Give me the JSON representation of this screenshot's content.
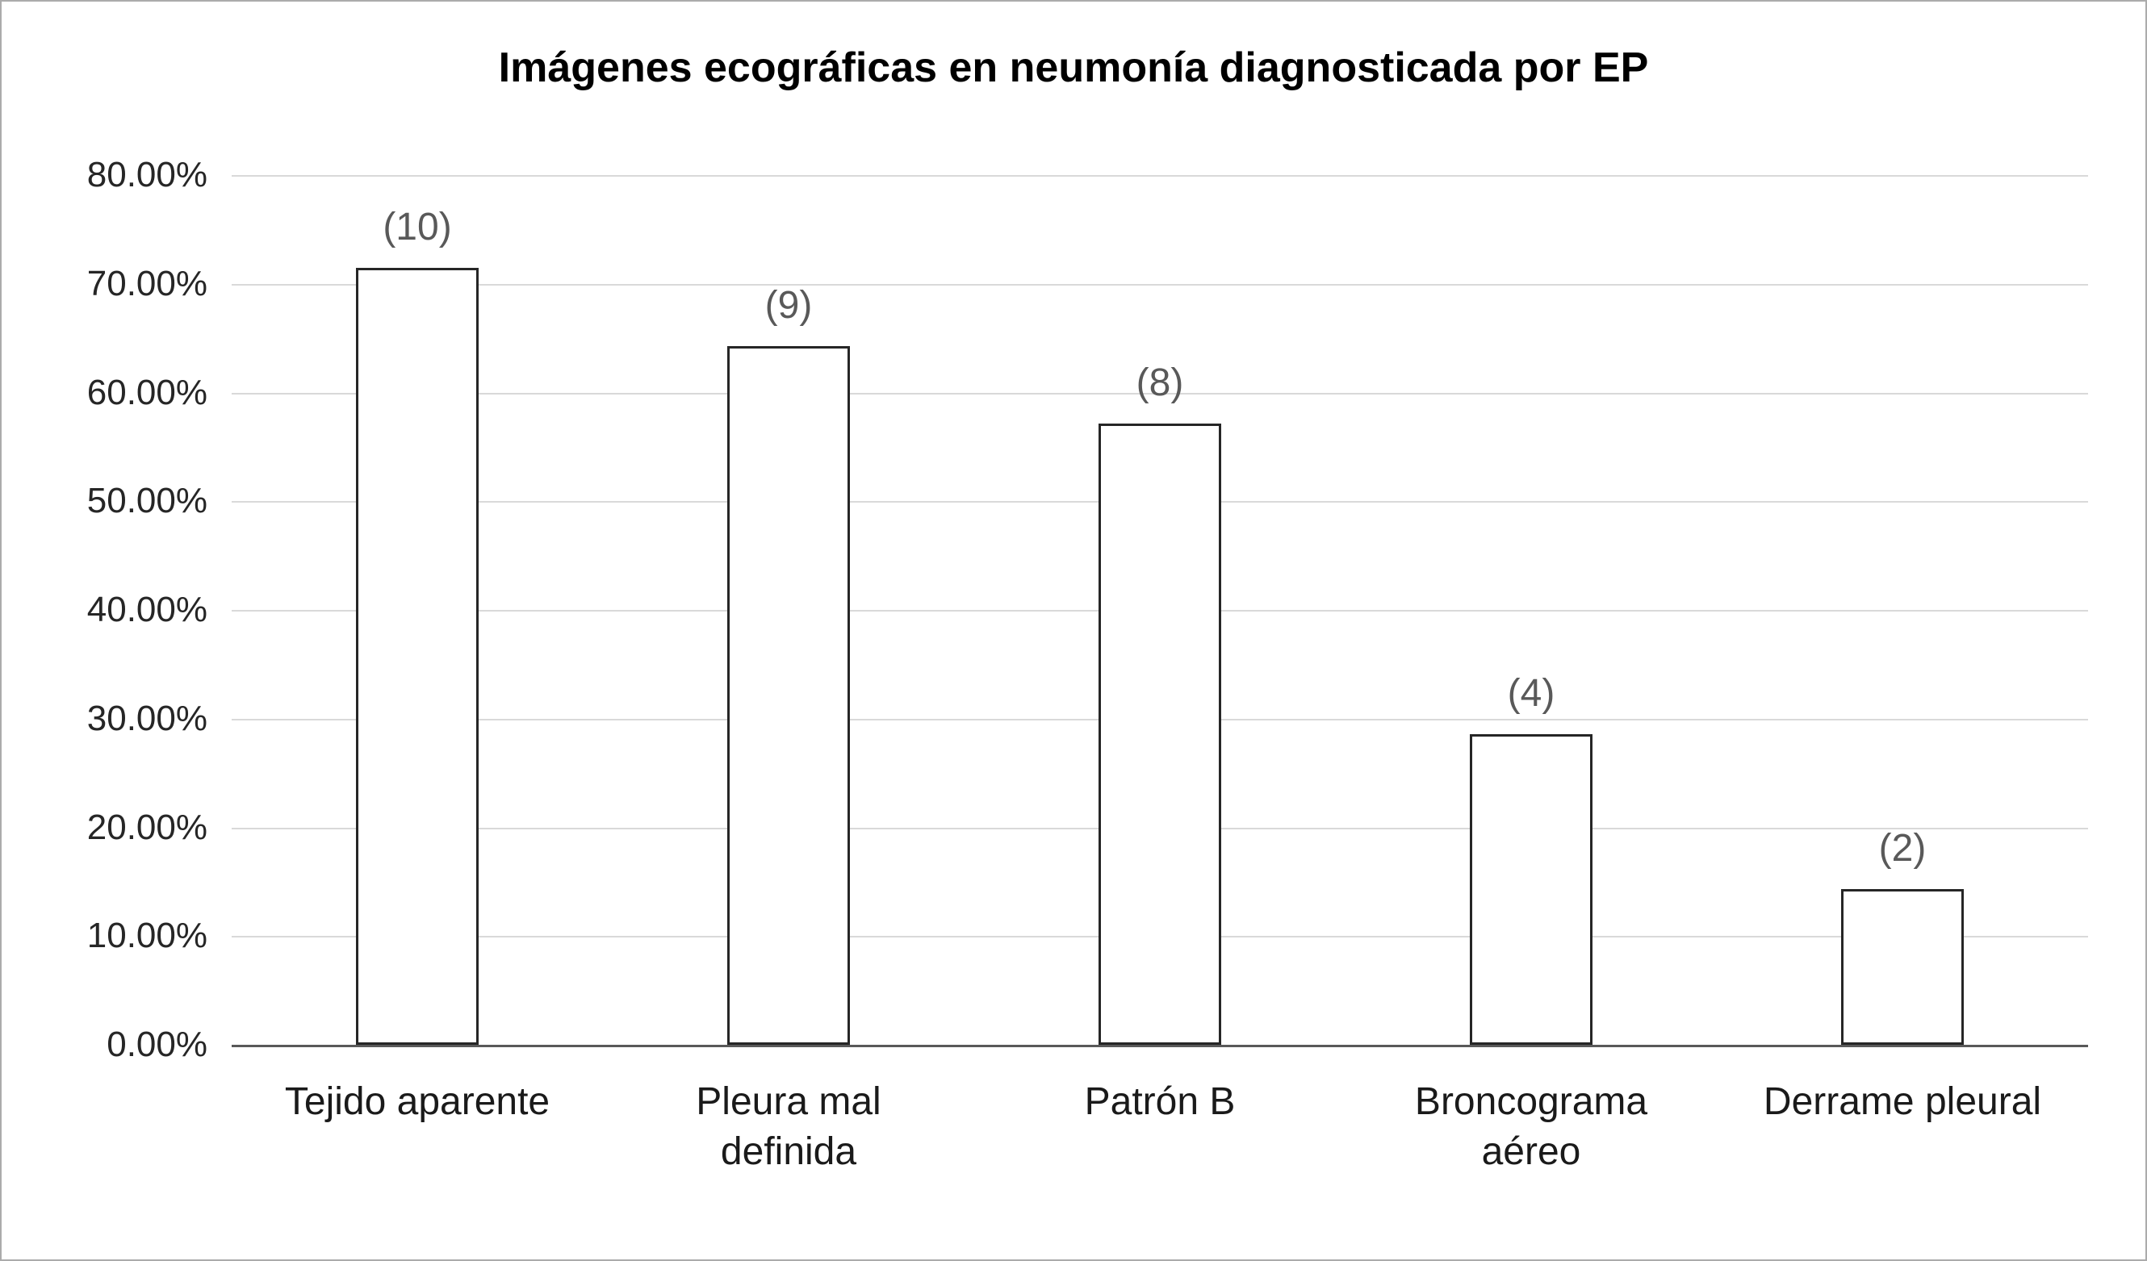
{
  "chart_data": {
    "type": "bar",
    "title": "Imágenes ecográficas en neumonía diagnosticada por EP",
    "categories": [
      "Tejido aparente",
      "Pleura mal definida",
      "Patrón B",
      "Broncograma aéreo",
      "Derrame pleural"
    ],
    "values": [
      71.43,
      64.29,
      57.14,
      28.57,
      14.29
    ],
    "counts": [
      10,
      9,
      8,
      4,
      2
    ],
    "bar_labels": [
      "(10)",
      "(9)",
      "(8)",
      "(4)",
      "(2)"
    ],
    "xlabel": "",
    "ylabel": "",
    "ylim": [
      0,
      80
    ],
    "ytick_step": 10,
    "ytick_labels_top_to_bottom": [
      "80.00%",
      "70.00%",
      "60.00%",
      "50.00%",
      "40.00%",
      "30.00%",
      "20.00%",
      "10.00%",
      "0.00%"
    ],
    "grid": true,
    "legend_position": "none",
    "colors": {
      "bar_fill": "#ffffff",
      "bar_border": "#262626",
      "gridline": "#d9d9d9",
      "axis_line": "#595959",
      "data_label": "#595959",
      "title": "#000000"
    }
  }
}
